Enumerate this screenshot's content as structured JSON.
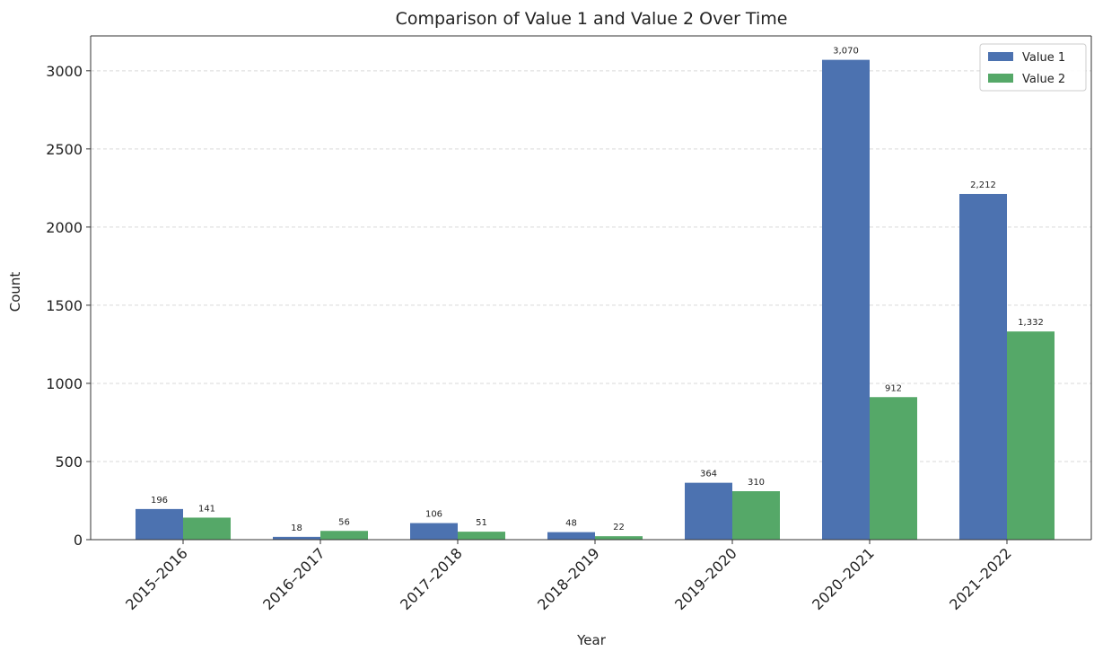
{
  "chart_data": {
    "type": "bar",
    "title": "Comparison of Value 1 and Value 2 Over Time",
    "xlabel": "Year",
    "ylabel": "Count",
    "categories": [
      "2015-2016",
      "2016-2017",
      "2017-2018",
      "2018-2019",
      "2019-2020",
      "2020-2021",
      "2021-2022"
    ],
    "series": [
      {
        "name": "Value 1",
        "color": "#4c72b0",
        "values": [
          196,
          18,
          106,
          48,
          364,
          3070,
          2212
        ],
        "labels": [
          "196",
          "18",
          "106",
          "48",
          "364",
          "3,070",
          "2,212"
        ]
      },
      {
        "name": "Value 2",
        "color": "#55a868",
        "values": [
          141,
          56,
          51,
          22,
          310,
          912,
          1332
        ],
        "labels": [
          "141",
          "56",
          "51",
          "22",
          "310",
          "912",
          "1,332"
        ]
      }
    ],
    "yticks": [
      0,
      500,
      1000,
      1500,
      2000,
      2500,
      3000
    ],
    "ylim": [
      0,
      3223
    ],
    "grid": "horizontal dashed",
    "legend": "top-right"
  }
}
